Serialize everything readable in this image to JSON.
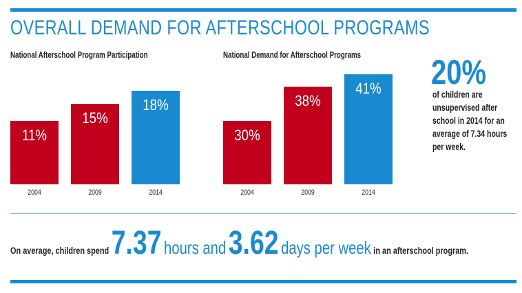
{
  "title": "OVERALL DEMAND FOR AFTERSCHOOL PROGRAMS",
  "colors": {
    "accent": "#1a8ad0",
    "red": "#c0001d"
  },
  "chart_data": [
    {
      "type": "bar",
      "title": "National Afterschool Program Participation",
      "categories": [
        "2004",
        "2009",
        "2014"
      ],
      "values": [
        11,
        15,
        18
      ],
      "labels": [
        "11%",
        "15%",
        "18%"
      ],
      "bar_colors": [
        "#c0001d",
        "#c0001d",
        "#1a8ad0"
      ],
      "grid": false
    },
    {
      "type": "bar",
      "title": "National Demand for Afterschool Programs",
      "categories": [
        "2004",
        "2009",
        "2014"
      ],
      "values": [
        30,
        38,
        41
      ],
      "labels": [
        "30%",
        "38%",
        "41%"
      ],
      "bar_colors": [
        "#c0001d",
        "#c0001d",
        "#1a8ad0"
      ],
      "grid": false
    }
  ],
  "callout": {
    "stat": "20%",
    "text": "of children are unsupervised after school in 2014 for an average of 7.34 hours per week."
  },
  "summary": {
    "prefix": "On average, children spend",
    "hours_value": "7.37",
    "hours_text": "hours and",
    "days_value": "3.62",
    "days_text": "days per week",
    "suffix": "in an afterschool program."
  }
}
